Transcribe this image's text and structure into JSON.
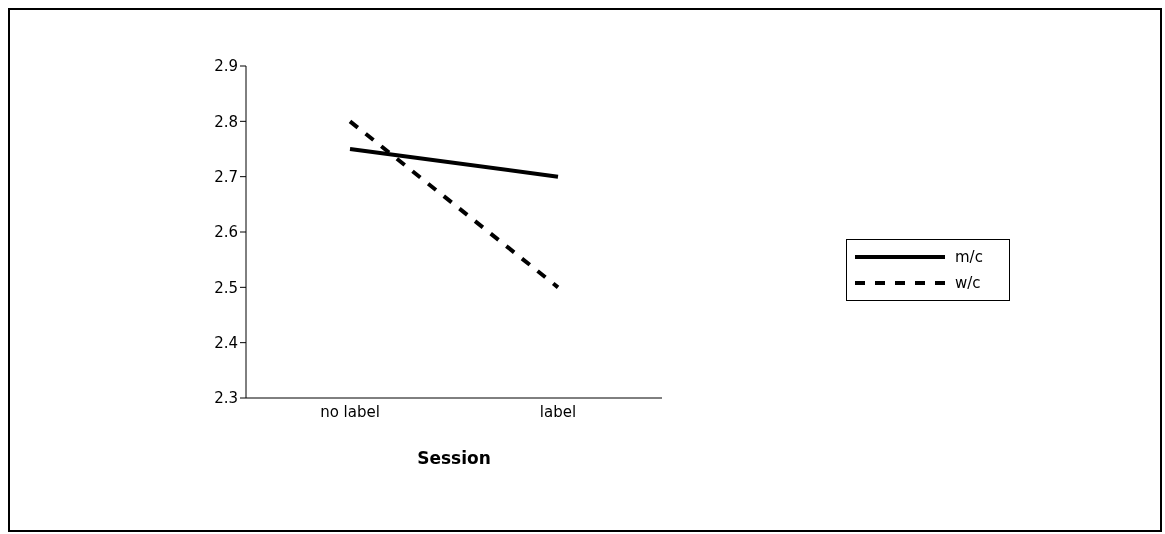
{
  "chart_data": {
    "type": "line",
    "xlabel": "Session",
    "categories": [
      "no label",
      "label"
    ],
    "series": [
      {
        "name": "m/c",
        "color": "#000000",
        "line_style": "solid",
        "values": [
          2.75,
          2.7
        ]
      },
      {
        "name": "w/c",
        "color": "#000000",
        "line_style": "dashed",
        "values": [
          2.8,
          2.5
        ]
      }
    ],
    "ylim": [
      2.3,
      2.9
    ],
    "yticks": [
      2.3,
      2.4,
      2.5,
      2.6,
      2.7,
      2.8,
      2.9
    ],
    "grid": false,
    "legend": "right",
    "marker": "none"
  }
}
